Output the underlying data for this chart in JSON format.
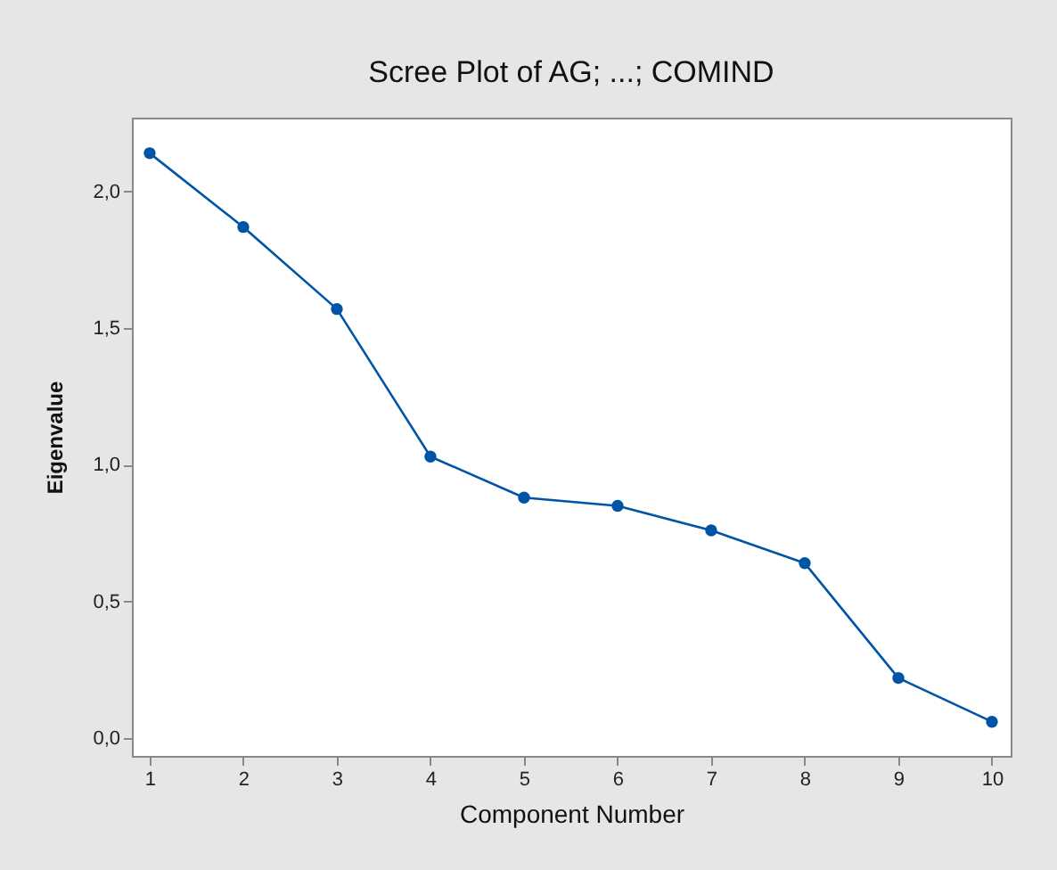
{
  "chart_data": {
    "type": "line",
    "title": "Scree Plot of AG; ...; COMIND",
    "xlabel": "Component Number",
    "ylabel": "Eigenvalue",
    "x": [
      1,
      2,
      3,
      4,
      5,
      6,
      7,
      8,
      9,
      10
    ],
    "series": [
      {
        "color": "#0054a6",
        "values": [
          2.14,
          1.87,
          1.57,
          1.03,
          0.88,
          0.85,
          0.76,
          0.64,
          0.22,
          0.06
        ]
      }
    ],
    "xlim": [
      0.81,
      10.2
    ],
    "xticks": [
      1,
      2,
      3,
      4,
      5,
      6,
      7,
      8,
      9,
      10
    ],
    "ylim": [
      -0.065,
      2.27
    ],
    "yticks": [
      {
        "value": 0,
        "label": "0,0"
      },
      {
        "value": 0.5,
        "label": "0,5"
      },
      {
        "value": 1,
        "label": "1,0"
      },
      {
        "value": 1.5,
        "label": "1,5"
      },
      {
        "value": 2,
        "label": "2,0"
      }
    ],
    "marker": "circle",
    "line_style": "solid",
    "grid": false,
    "legend": false
  }
}
